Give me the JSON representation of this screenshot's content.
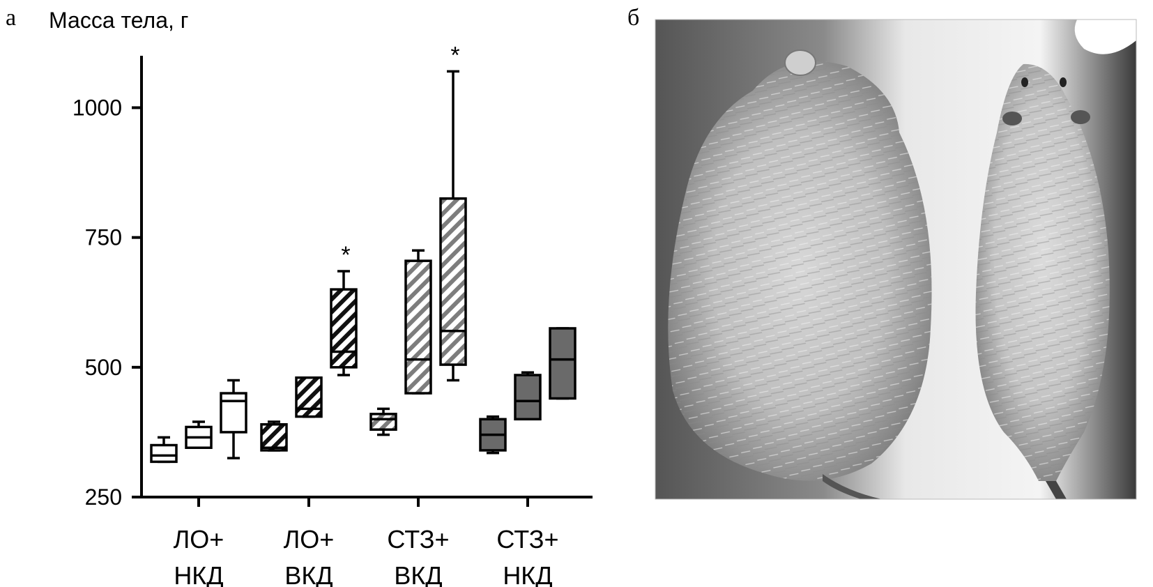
{
  "panels": {
    "left_label": "а",
    "right_label": "б"
  },
  "chart_data": {
    "type": "box",
    "ylabel": "Масса тела, г",
    "ylim": [
      250,
      1100
    ],
    "yticks": [
      250,
      500,
      750,
      1000
    ],
    "groups": [
      {
        "label_lines": [
          "ЛО+",
          "НКД"
        ],
        "fill": "white",
        "boxes": [
          {
            "min": 318,
            "q1": 318,
            "median": 330,
            "q3": 350,
            "max": 365,
            "star": ""
          },
          {
            "min": 345,
            "q1": 345,
            "median": 365,
            "q3": 385,
            "max": 395,
            "star": ""
          },
          {
            "min": 325,
            "q1": 375,
            "median": 435,
            "q3": 450,
            "max": 475,
            "star": ""
          }
        ]
      },
      {
        "label_lines": [
          "ЛО+",
          "ВКД"
        ],
        "fill": "hatch-black",
        "boxes": [
          {
            "min": 340,
            "q1": 340,
            "median": 345,
            "q3": 390,
            "max": 395,
            "star": ""
          },
          {
            "min": 405,
            "q1": 405,
            "median": 420,
            "q3": 480,
            "max": 480,
            "star": ""
          },
          {
            "min": 485,
            "q1": 500,
            "median": 530,
            "q3": 650,
            "max": 685,
            "star": "*"
          }
        ]
      },
      {
        "label_lines": [
          "СТЗ+",
          "ВКД"
        ],
        "fill": "hatch-gray",
        "boxes": [
          {
            "min": 370,
            "q1": 380,
            "median": 400,
            "q3": 410,
            "max": 420,
            "star": ""
          },
          {
            "min": 450,
            "q1": 450,
            "median": 515,
            "q3": 705,
            "max": 725,
            "star": ""
          },
          {
            "min": 475,
            "q1": 505,
            "median": 570,
            "q3": 825,
            "max": 1070,
            "star": "*"
          }
        ]
      },
      {
        "label_lines": [
          "СТЗ+",
          "НКД"
        ],
        "fill": "gray",
        "boxes": [
          {
            "min": 335,
            "q1": 340,
            "median": 370,
            "q3": 400,
            "max": 405,
            "star": ""
          },
          {
            "min": 400,
            "q1": 400,
            "median": 435,
            "q3": 485,
            "max": 490,
            "star": ""
          },
          {
            "min": 440,
            "q1": 440,
            "median": 515,
            "q3": 575,
            "max": 575,
            "star": ""
          }
        ]
      }
    ]
  }
}
